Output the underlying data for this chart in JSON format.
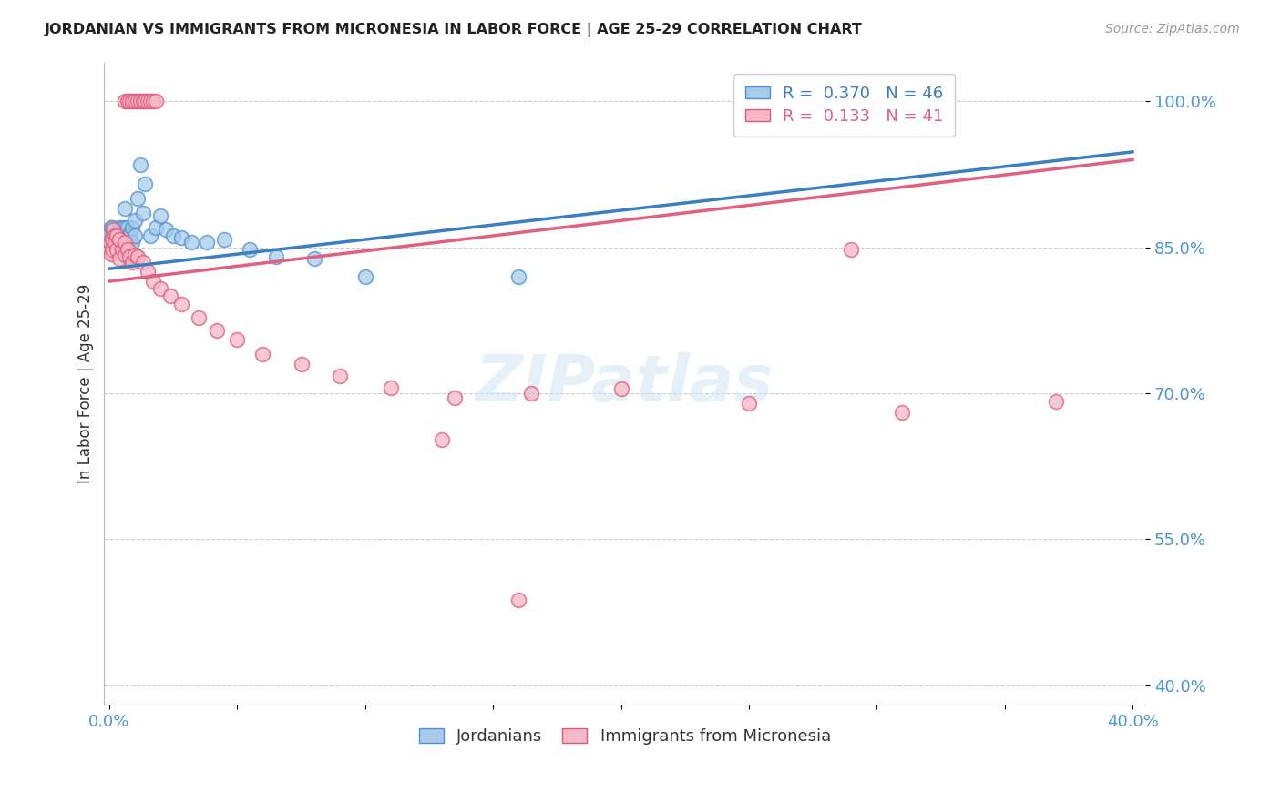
{
  "title": "JORDANIAN VS IMMIGRANTS FROM MICRONESIA IN LABOR FORCE | AGE 25-29 CORRELATION CHART",
  "source": "Source: ZipAtlas.com",
  "ylabel": "In Labor Force | Age 25-29",
  "R_blue": 0.37,
  "N_blue": 46,
  "R_pink": 0.133,
  "N_pink": 41,
  "color_blue_fill": "#a8cce8",
  "color_blue_edge": "#4a90d4",
  "color_pink_fill": "#f5b8c8",
  "color_pink_edge": "#e05878",
  "color_blue_line": "#3a7fc1",
  "color_pink_line": "#e06080",
  "color_axis_labels": "#4d94d9",
  "background_color": "#ffffff",
  "grid_color": "#cccccc",
  "title_color": "#222222",
  "xlim": [
    -0.002,
    0.405
  ],
  "ylim": [
    0.38,
    1.04
  ],
  "yticks": [
    0.4,
    0.55,
    0.7,
    0.85,
    1.0
  ],
  "ytick_labels": [
    "40.0%",
    "55.0%",
    "70.0%",
    "85.0%",
    "100.0%"
  ],
  "xticks": [
    0.0,
    0.05,
    0.1,
    0.15,
    0.2,
    0.25,
    0.3,
    0.35,
    0.4
  ],
  "xtick_labels": [
    "0.0%",
    "",
    "",
    "",
    "",
    "",
    "",
    "",
    "40.0%"
  ],
  "legend_label_blue": "Jordanians",
  "legend_label_pink": "Immigrants from Micronesia",
  "blue_x": [
    0.0005,
    0.0008,
    0.001,
    0.001,
    0.0015,
    0.002,
    0.002,
    0.002,
    0.003,
    0.003,
    0.003,
    0.004,
    0.004,
    0.004,
    0.005,
    0.005,
    0.005,
    0.006,
    0.006,
    0.007,
    0.007,
    0.007,
    0.008,
    0.008,
    0.009,
    0.009,
    0.01,
    0.01,
    0.011,
    0.012,
    0.013,
    0.014,
    0.016,
    0.018,
    0.02,
    0.022,
    0.025,
    0.028,
    0.032,
    0.038,
    0.045,
    0.055,
    0.065,
    0.08,
    0.1,
    0.16
  ],
  "blue_y": [
    0.855,
    0.87,
    0.862,
    0.87,
    0.858,
    0.863,
    0.855,
    0.868,
    0.864,
    0.858,
    0.862,
    0.87,
    0.858,
    0.855,
    0.87,
    0.863,
    0.855,
    0.89,
    0.87,
    0.87,
    0.855,
    0.862,
    0.855,
    0.862,
    0.855,
    0.87,
    0.878,
    0.862,
    0.9,
    0.935,
    0.885,
    0.915,
    0.862,
    0.87,
    0.882,
    0.868,
    0.862,
    0.86,
    0.855,
    0.855,
    0.858,
    0.848,
    0.84,
    0.838,
    0.82,
    0.82
  ],
  "pink_x": [
    0.0005,
    0.0008,
    0.001,
    0.001,
    0.0015,
    0.002,
    0.002,
    0.003,
    0.003,
    0.004,
    0.004,
    0.005,
    0.006,
    0.006,
    0.007,
    0.008,
    0.009,
    0.01,
    0.011,
    0.013,
    0.015,
    0.017,
    0.02,
    0.024,
    0.028,
    0.035,
    0.042,
    0.05,
    0.06,
    0.075,
    0.09,
    0.11,
    0.135,
    0.165,
    0.2,
    0.25,
    0.31,
    0.37,
    0.16,
    0.13,
    0.29
  ],
  "pink_y": [
    0.855,
    0.843,
    0.858,
    0.848,
    0.868,
    0.862,
    0.855,
    0.862,
    0.848,
    0.858,
    0.838,
    0.848,
    0.855,
    0.842,
    0.848,
    0.84,
    0.835,
    0.842,
    0.84,
    0.835,
    0.825,
    0.815,
    0.808,
    0.8,
    0.792,
    0.778,
    0.765,
    0.755,
    0.74,
    0.73,
    0.718,
    0.706,
    0.695,
    0.7,
    0.705,
    0.69,
    0.68,
    0.692,
    0.488,
    0.652,
    0.848
  ],
  "pink_top_x": [
    0.006,
    0.007,
    0.008,
    0.009,
    0.01,
    0.011,
    0.012,
    0.013,
    0.014,
    0.015,
    0.016,
    0.017,
    0.018
  ],
  "pink_top_y": [
    1.0,
    1.0,
    1.0,
    1.0,
    1.0,
    1.0,
    1.0,
    1.0,
    1.0,
    1.0,
    1.0,
    1.0,
    1.0
  ],
  "blue_trend_x": [
    0.0,
    0.4
  ],
  "blue_trend_y": [
    0.828,
    0.948
  ],
  "pink_trend_x": [
    0.0,
    0.4
  ],
  "pink_trend_y": [
    0.815,
    0.94
  ]
}
